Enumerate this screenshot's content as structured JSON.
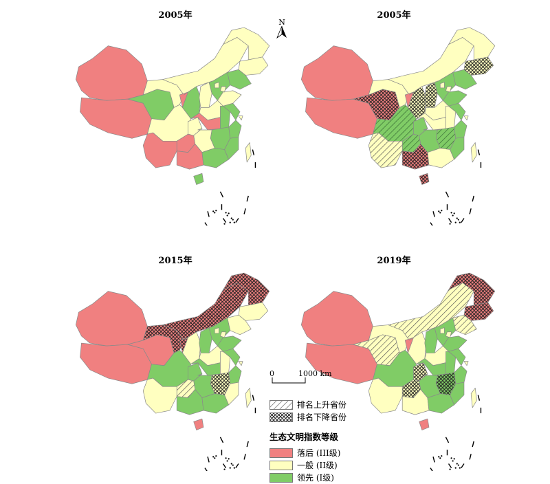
{
  "panels": [
    {
      "id": "p1",
      "title": "2005年"
    },
    {
      "id": "p2",
      "title": "2005年"
    },
    {
      "id": "p3",
      "title": "2015年"
    },
    {
      "id": "p4",
      "title": "2019年"
    }
  ],
  "north_arrow": {
    "label": "N"
  },
  "scale": {
    "start": "0",
    "end": "1000 km"
  },
  "legend": {
    "change_items": [
      {
        "label": "排名上升省份",
        "pattern": "hatch"
      },
      {
        "label": "排名下降省份",
        "pattern": "crosshatch"
      }
    ],
    "title": "生态文明指数等级",
    "class_items": [
      {
        "label": "落后 (III级)",
        "color": "#f08080"
      },
      {
        "label": "一般 (II级)",
        "color": "#ffffc0"
      },
      {
        "label": "领先 (I级)",
        "color": "#80cc66"
      }
    ]
  },
  "colors": {
    "lagging": "#f08080",
    "general": "#ffffc0",
    "leading": "#80cc66",
    "border": "#8a8a8a"
  }
}
